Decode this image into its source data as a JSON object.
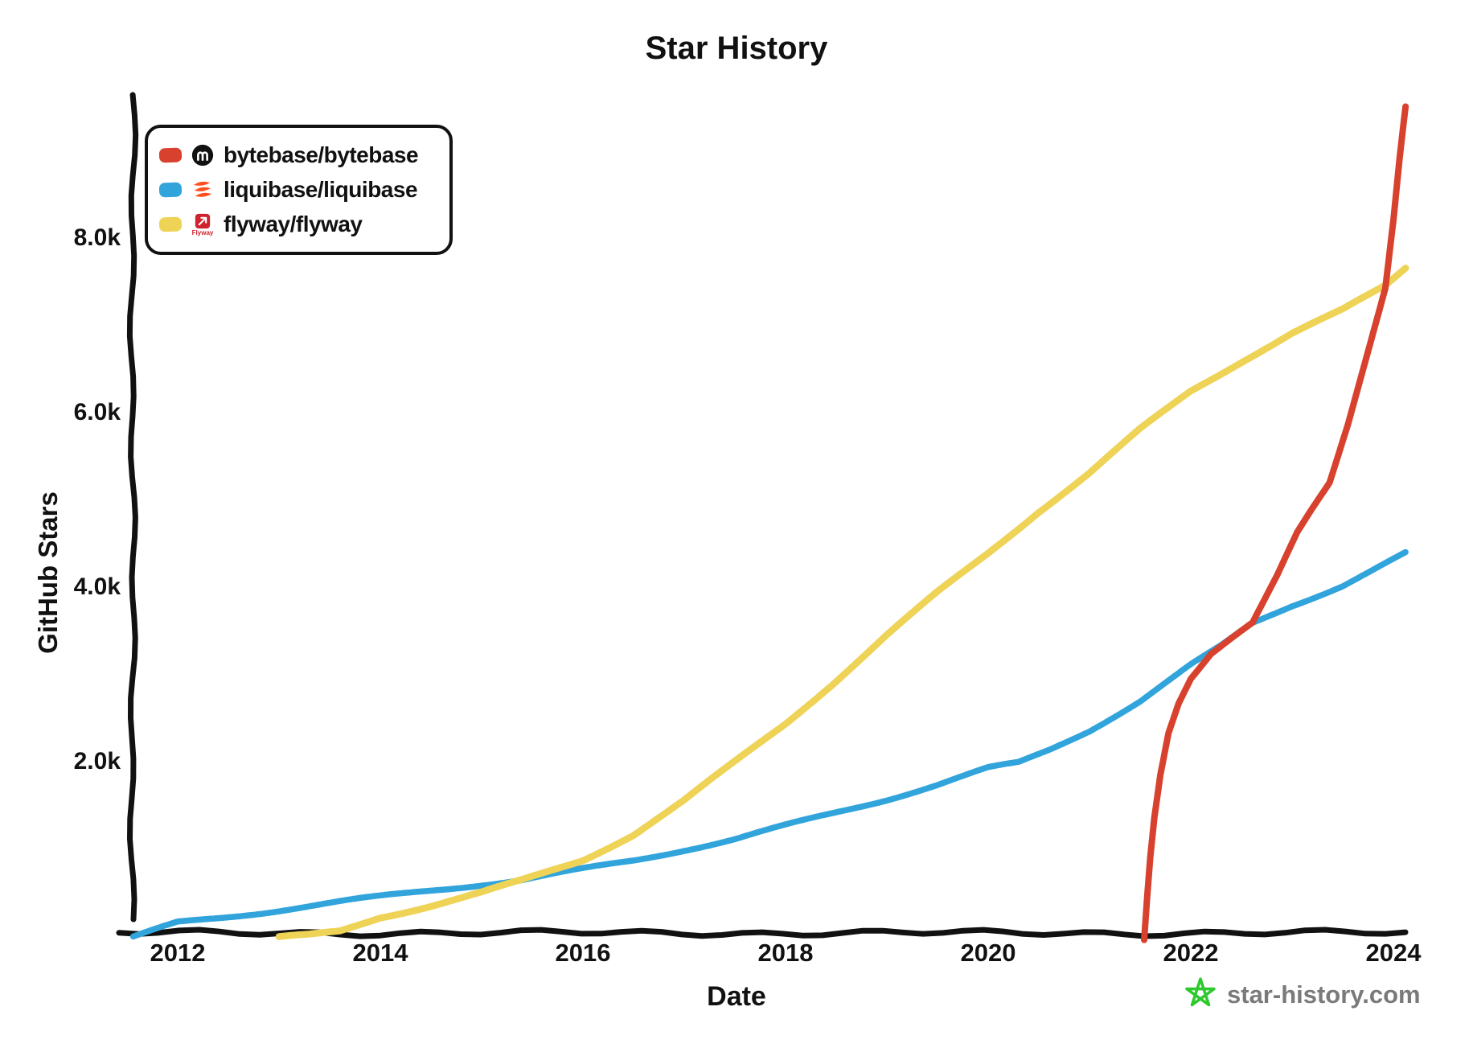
{
  "title": "Star History",
  "axes": {
    "x_title": "Date",
    "y_title": "GitHub Stars",
    "x_tick_labels": [
      "2012",
      "2014",
      "2016",
      "2018",
      "2020",
      "2022",
      "2024"
    ],
    "y_tick_labels": [
      "2.0k",
      "4.0k",
      "6.0k",
      "8.0k"
    ]
  },
  "legend": {
    "items": [
      {
        "label": "bytebase/bytebase",
        "swatch_color": "#d7412d",
        "icon": "bytebase-logo",
        "icon_color": "#111111"
      },
      {
        "label": "liquibase/liquibase",
        "swatch_color": "#31a4dc",
        "icon": "liquibase-logo",
        "icon_color": "#ff4f1f"
      },
      {
        "label": "flyway/flyway",
        "swatch_color": "#eed356",
        "icon": "flyway-logo",
        "icon_color": "#cf212e",
        "icon_text": "Flyway"
      }
    ]
  },
  "watermark": {
    "text": "star-history.com",
    "star_color": "#2dc92d",
    "text_color": "#7a7a7a"
  },
  "colors": {
    "axis": "#111111",
    "bytebase": "#d7412d",
    "liquibase": "#31a4dc",
    "flyway": "#eed356"
  },
  "chart_data": {
    "type": "line",
    "title": "Star History",
    "xlabel": "Date",
    "ylabel": "GitHub Stars",
    "xlim": [
      2011.45,
      2024.2
    ],
    "ylim": [
      0,
      9650
    ],
    "grid": false,
    "legend_position": "top-left",
    "x_ticks": [
      {
        "value": 2012,
        "label": "2012"
      },
      {
        "value": 2014,
        "label": "2014"
      },
      {
        "value": 2016,
        "label": "2016"
      },
      {
        "value": 2018,
        "label": "2018"
      },
      {
        "value": 2020,
        "label": "2020"
      },
      {
        "value": 2022,
        "label": "2022"
      },
      {
        "value": 2024,
        "label": "2024"
      }
    ],
    "y_ticks": [
      {
        "value": 2000,
        "label": "2.0k"
      },
      {
        "value": 4000,
        "label": "4.0k"
      },
      {
        "value": 6000,
        "label": "6.0k"
      },
      {
        "value": 8000,
        "label": "8.0k"
      }
    ],
    "series": [
      {
        "name": "liquibase/liquibase",
        "color": "#31a4dc",
        "points": [
          [
            2011.56,
            20
          ],
          [
            2012,
            190
          ],
          [
            2012.5,
            260
          ],
          [
            2013,
            330
          ],
          [
            2013.5,
            400
          ],
          [
            2014,
            470
          ],
          [
            2014.5,
            545
          ],
          [
            2015,
            615
          ],
          [
            2015.4,
            665
          ],
          [
            2016,
            790
          ],
          [
            2016.5,
            900
          ],
          [
            2017,
            1030
          ],
          [
            2017.5,
            1150
          ],
          [
            2018,
            1300
          ],
          [
            2018.5,
            1450
          ],
          [
            2019,
            1600
          ],
          [
            2019.5,
            1760
          ],
          [
            2020,
            1940
          ],
          [
            2020.3,
            2000
          ],
          [
            2020.6,
            2150
          ],
          [
            2021,
            2380
          ],
          [
            2021.5,
            2720
          ],
          [
            2022,
            3130
          ],
          [
            2022.3,
            3350
          ],
          [
            2022.61,
            3620
          ],
          [
            2023,
            3830
          ],
          [
            2023.5,
            4060
          ],
          [
            2024.12,
            4420
          ]
        ]
      },
      {
        "name": "flyway/flyway",
        "color": "#eed356",
        "points": [
          [
            2013.0,
            10
          ],
          [
            2013.3,
            40
          ],
          [
            2013.6,
            90
          ],
          [
            2014,
            260
          ],
          [
            2014.5,
            390
          ],
          [
            2015,
            530
          ],
          [
            2015.4,
            665
          ],
          [
            2016,
            900
          ],
          [
            2016.5,
            1190
          ],
          [
            2017,
            1570
          ],
          [
            2017.5,
            2010
          ],
          [
            2018,
            2460
          ],
          [
            2018.5,
            2960
          ],
          [
            2019,
            3480
          ],
          [
            2019.5,
            3970
          ],
          [
            2020,
            4430
          ],
          [
            2020.5,
            4910
          ],
          [
            2021,
            5340
          ],
          [
            2021.5,
            5830
          ],
          [
            2022,
            6270
          ],
          [
            2022.5,
            6610
          ],
          [
            2023,
            6930
          ],
          [
            2023.5,
            7190
          ],
          [
            2023.92,
            7470
          ],
          [
            2024.12,
            7680
          ]
        ]
      },
      {
        "name": "bytebase/bytebase",
        "color": "#d7412d",
        "points": [
          [
            2021.54,
            0
          ],
          [
            2021.57,
            500
          ],
          [
            2021.6,
            950
          ],
          [
            2021.64,
            1400
          ],
          [
            2021.7,
            1900
          ],
          [
            2021.78,
            2380
          ],
          [
            2021.88,
            2720
          ],
          [
            2022.0,
            3000
          ],
          [
            2022.2,
            3280
          ],
          [
            2022.4,
            3450
          ],
          [
            2022.61,
            3620
          ],
          [
            2022.85,
            4150
          ],
          [
            2023.05,
            4650
          ],
          [
            2023.2,
            4930
          ],
          [
            2023.37,
            5230
          ],
          [
            2023.55,
            5900
          ],
          [
            2023.75,
            6750
          ],
          [
            2023.92,
            7470
          ],
          [
            2024.0,
            8250
          ],
          [
            2024.06,
            8950
          ],
          [
            2024.12,
            9550
          ]
        ]
      }
    ]
  }
}
